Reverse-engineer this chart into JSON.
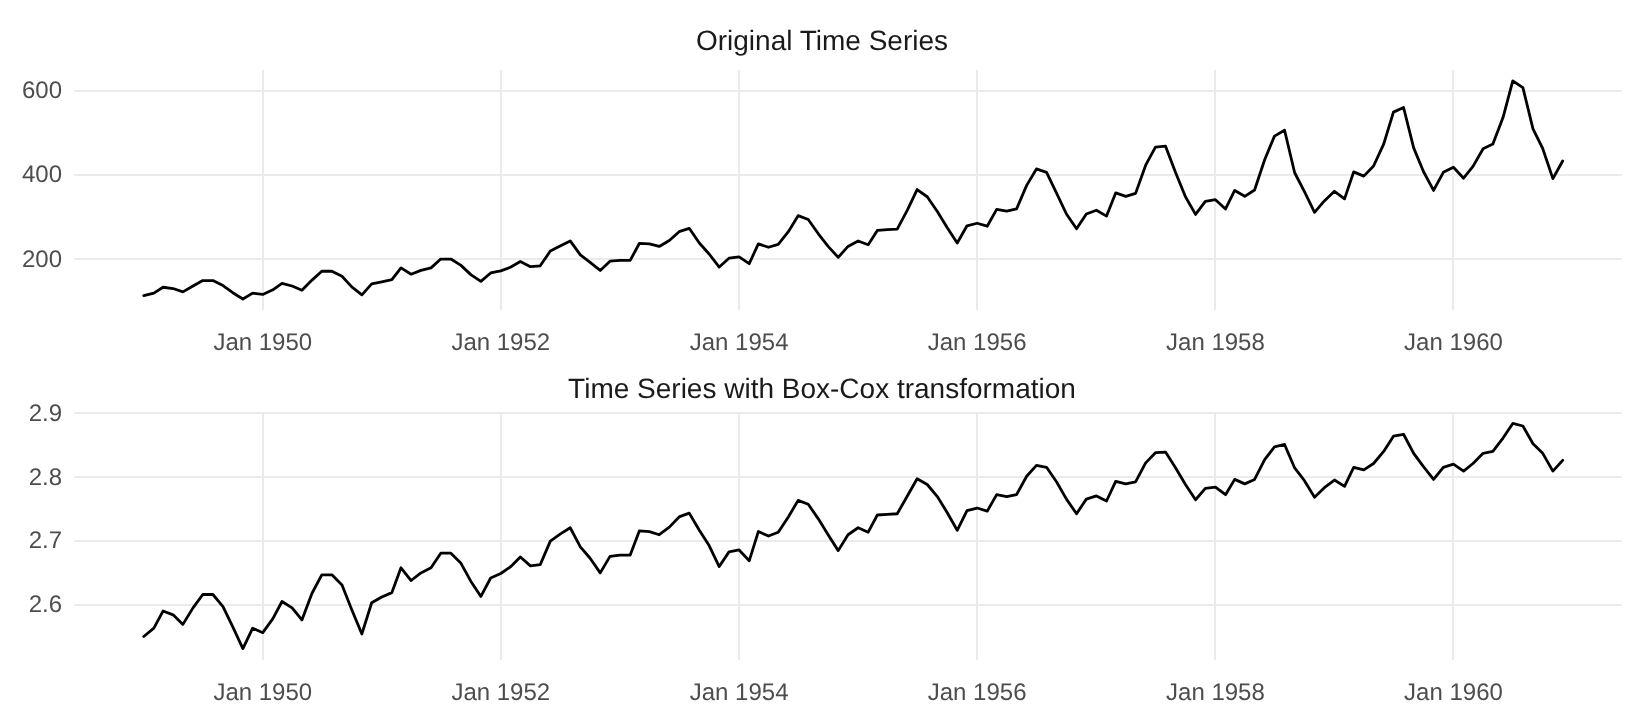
{
  "chart_data": [
    {
      "type": "line",
      "title": "Original Time Series",
      "color": "#000000",
      "grid": true,
      "x": [
        "1949-01",
        "1949-02",
        "1949-03",
        "1949-04",
        "1949-05",
        "1949-06",
        "1949-07",
        "1949-08",
        "1949-09",
        "1949-10",
        "1949-11",
        "1949-12",
        "1950-01",
        "1950-02",
        "1950-03",
        "1950-04",
        "1950-05",
        "1950-06",
        "1950-07",
        "1950-08",
        "1950-09",
        "1950-10",
        "1950-11",
        "1950-12",
        "1951-01",
        "1951-02",
        "1951-03",
        "1951-04",
        "1951-05",
        "1951-06",
        "1951-07",
        "1951-08",
        "1951-09",
        "1951-10",
        "1951-11",
        "1951-12",
        "1952-01",
        "1952-02",
        "1952-03",
        "1952-04",
        "1952-05",
        "1952-06",
        "1952-07",
        "1952-08",
        "1952-09",
        "1952-10",
        "1952-11",
        "1952-12",
        "1953-01",
        "1953-02",
        "1953-03",
        "1953-04",
        "1953-05",
        "1953-06",
        "1953-07",
        "1953-08",
        "1953-09",
        "1953-10",
        "1953-11",
        "1953-12",
        "1954-01",
        "1954-02",
        "1954-03",
        "1954-04",
        "1954-05",
        "1954-06",
        "1954-07",
        "1954-08",
        "1954-09",
        "1954-10",
        "1954-11",
        "1954-12",
        "1955-01",
        "1955-02",
        "1955-03",
        "1955-04",
        "1955-05",
        "1955-06",
        "1955-07",
        "1955-08",
        "1955-09",
        "1955-10",
        "1955-11",
        "1955-12",
        "1956-01",
        "1956-02",
        "1956-03",
        "1956-04",
        "1956-05",
        "1956-06",
        "1956-07",
        "1956-08",
        "1956-09",
        "1956-10",
        "1956-11",
        "1956-12",
        "1957-01",
        "1957-02",
        "1957-03",
        "1957-04",
        "1957-05",
        "1957-06",
        "1957-07",
        "1957-08",
        "1957-09",
        "1957-10",
        "1957-11",
        "1957-12",
        "1958-01",
        "1958-02",
        "1958-03",
        "1958-04",
        "1958-05",
        "1958-06",
        "1958-07",
        "1958-08",
        "1958-09",
        "1958-10",
        "1958-11",
        "1958-12",
        "1959-01",
        "1959-02",
        "1959-03",
        "1959-04",
        "1959-05",
        "1959-06",
        "1959-07",
        "1959-08",
        "1959-09",
        "1959-10",
        "1959-11",
        "1959-12",
        "1960-01",
        "1960-02",
        "1960-03",
        "1960-04",
        "1960-05",
        "1960-06",
        "1960-07",
        "1960-08",
        "1960-09",
        "1960-10",
        "1960-11",
        "1960-12"
      ],
      "values": [
        112,
        118,
        132,
        129,
        121,
        135,
        148,
        148,
        136,
        119,
        104,
        118,
        115,
        126,
        141,
        135,
        125,
        149,
        170,
        170,
        158,
        133,
        114,
        140,
        145,
        150,
        178,
        163,
        172,
        178,
        199,
        199,
        184,
        162,
        146,
        166,
        171,
        180,
        193,
        181,
        183,
        218,
        230,
        242,
        209,
        191,
        172,
        194,
        196,
        196,
        236,
        235,
        229,
        243,
        264,
        272,
        237,
        211,
        180,
        201,
        204,
        188,
        235,
        227,
        234,
        264,
        302,
        293,
        259,
        229,
        203,
        229,
        242,
        233,
        267,
        269,
        270,
        315,
        364,
        347,
        312,
        274,
        237,
        278,
        284,
        277,
        317,
        313,
        318,
        374,
        413,
        405,
        355,
        306,
        271,
        306,
        315,
        301,
        356,
        348,
        355,
        422,
        465,
        467,
        404,
        347,
        305,
        336,
        340,
        318,
        362,
        348,
        363,
        435,
        491,
        505,
        404,
        359,
        310,
        337,
        360,
        342,
        406,
        396,
        420,
        472,
        548,
        559,
        463,
        407,
        362,
        405,
        417,
        391,
        419,
        461,
        472,
        535,
        622,
        606,
        508,
        461,
        390,
        432
      ],
      "xlim": [
        "1948-06",
        "1961-06"
      ],
      "ylim": [
        78,
        648
      ],
      "yticks": [
        200,
        400,
        600
      ],
      "xticks": [
        {
          "value": "1950-01",
          "label": "Jan 1950"
        },
        {
          "value": "1952-01",
          "label": "Jan 1952"
        },
        {
          "value": "1954-01",
          "label": "Jan 1954"
        },
        {
          "value": "1956-01",
          "label": "Jan 1956"
        },
        {
          "value": "1958-01",
          "label": "Jan 1958"
        },
        {
          "value": "1960-01",
          "label": "Jan 1960"
        }
      ]
    },
    {
      "type": "line",
      "title": "Time Series with Box-Cox transformation",
      "color": "#000000",
      "grid": true,
      "x": [
        "1949-01",
        "1949-02",
        "1949-03",
        "1949-04",
        "1949-05",
        "1949-06",
        "1949-07",
        "1949-08",
        "1949-09",
        "1949-10",
        "1949-11",
        "1949-12",
        "1950-01",
        "1950-02",
        "1950-03",
        "1950-04",
        "1950-05",
        "1950-06",
        "1950-07",
        "1950-08",
        "1950-09",
        "1950-10",
        "1950-11",
        "1950-12",
        "1951-01",
        "1951-02",
        "1951-03",
        "1951-04",
        "1951-05",
        "1951-06",
        "1951-07",
        "1951-08",
        "1951-09",
        "1951-10",
        "1951-11",
        "1951-12",
        "1952-01",
        "1952-02",
        "1952-03",
        "1952-04",
        "1952-05",
        "1952-06",
        "1952-07",
        "1952-08",
        "1952-09",
        "1952-10",
        "1952-11",
        "1952-12",
        "1953-01",
        "1953-02",
        "1953-03",
        "1953-04",
        "1953-05",
        "1953-06",
        "1953-07",
        "1953-08",
        "1953-09",
        "1953-10",
        "1953-11",
        "1953-12",
        "1954-01",
        "1954-02",
        "1954-03",
        "1954-04",
        "1954-05",
        "1954-06",
        "1954-07",
        "1954-08",
        "1954-09",
        "1954-10",
        "1954-11",
        "1954-12",
        "1955-01",
        "1955-02",
        "1955-03",
        "1955-04",
        "1955-05",
        "1955-06",
        "1955-07",
        "1955-08",
        "1955-09",
        "1955-10",
        "1955-11",
        "1955-12",
        "1956-01",
        "1956-02",
        "1956-03",
        "1956-04",
        "1956-05",
        "1956-06",
        "1956-07",
        "1956-08",
        "1956-09",
        "1956-10",
        "1956-11",
        "1956-12",
        "1957-01",
        "1957-02",
        "1957-03",
        "1957-04",
        "1957-05",
        "1957-06",
        "1957-07",
        "1957-08",
        "1957-09",
        "1957-10",
        "1957-11",
        "1957-12",
        "1958-01",
        "1958-02",
        "1958-03",
        "1958-04",
        "1958-05",
        "1958-06",
        "1958-07",
        "1958-08",
        "1958-09",
        "1958-10",
        "1958-11",
        "1958-12",
        "1959-01",
        "1959-02",
        "1959-03",
        "1959-04",
        "1959-05",
        "1959-06",
        "1959-07",
        "1959-08",
        "1959-09",
        "1959-10",
        "1959-11",
        "1959-12",
        "1960-01",
        "1960-02",
        "1960-03",
        "1960-04",
        "1960-05",
        "1960-06",
        "1960-07",
        "1960-08",
        "1960-09",
        "1960-10",
        "1960-11",
        "1960-12"
      ],
      "values": [
        2.549,
        2.562,
        2.589,
        2.583,
        2.568,
        2.594,
        2.615,
        2.615,
        2.596,
        2.564,
        2.53,
        2.562,
        2.555,
        2.577,
        2.604,
        2.594,
        2.575,
        2.617,
        2.646,
        2.646,
        2.63,
        2.591,
        2.553,
        2.602,
        2.611,
        2.618,
        2.657,
        2.637,
        2.649,
        2.657,
        2.68,
        2.68,
        2.664,
        2.636,
        2.612,
        2.641,
        2.648,
        2.659,
        2.674,
        2.66,
        2.662,
        2.699,
        2.71,
        2.72,
        2.69,
        2.672,
        2.649,
        2.675,
        2.677,
        2.677,
        2.715,
        2.714,
        2.709,
        2.721,
        2.737,
        2.743,
        2.716,
        2.692,
        2.659,
        2.682,
        2.685,
        2.668,
        2.714,
        2.707,
        2.713,
        2.737,
        2.763,
        2.757,
        2.734,
        2.709,
        2.684,
        2.709,
        2.72,
        2.713,
        2.74,
        2.741,
        2.742,
        2.77,
        2.797,
        2.788,
        2.769,
        2.744,
        2.716,
        2.747,
        2.751,
        2.746,
        2.772,
        2.769,
        2.772,
        2.801,
        2.818,
        2.815,
        2.792,
        2.765,
        2.742,
        2.765,
        2.77,
        2.762,
        2.793,
        2.789,
        2.792,
        2.822,
        2.838,
        2.839,
        2.814,
        2.788,
        2.764,
        2.782,
        2.784,
        2.772,
        2.796,
        2.789,
        2.796,
        2.827,
        2.847,
        2.851,
        2.814,
        2.794,
        2.768,
        2.783,
        2.795,
        2.785,
        2.815,
        2.811,
        2.821,
        2.84,
        2.864,
        2.867,
        2.837,
        2.816,
        2.796,
        2.815,
        2.82,
        2.809,
        2.821,
        2.837,
        2.84,
        2.861,
        2.884,
        2.88,
        2.852,
        2.837,
        2.809,
        2.826
      ],
      "xlim": [
        "1948-06",
        "1961-06"
      ],
      "ylim": [
        2.512,
        2.902
      ],
      "yticks": [
        2.6,
        2.7,
        2.8,
        2.9
      ],
      "xticks": [
        {
          "value": "1950-01",
          "label": "Jan 1950"
        },
        {
          "value": "1952-01",
          "label": "Jan 1952"
        },
        {
          "value": "1954-01",
          "label": "Jan 1954"
        },
        {
          "value": "1956-01",
          "label": "Jan 1956"
        },
        {
          "value": "1958-01",
          "label": "Jan 1958"
        },
        {
          "value": "1960-01",
          "label": "Jan 1960"
        }
      ]
    }
  ]
}
